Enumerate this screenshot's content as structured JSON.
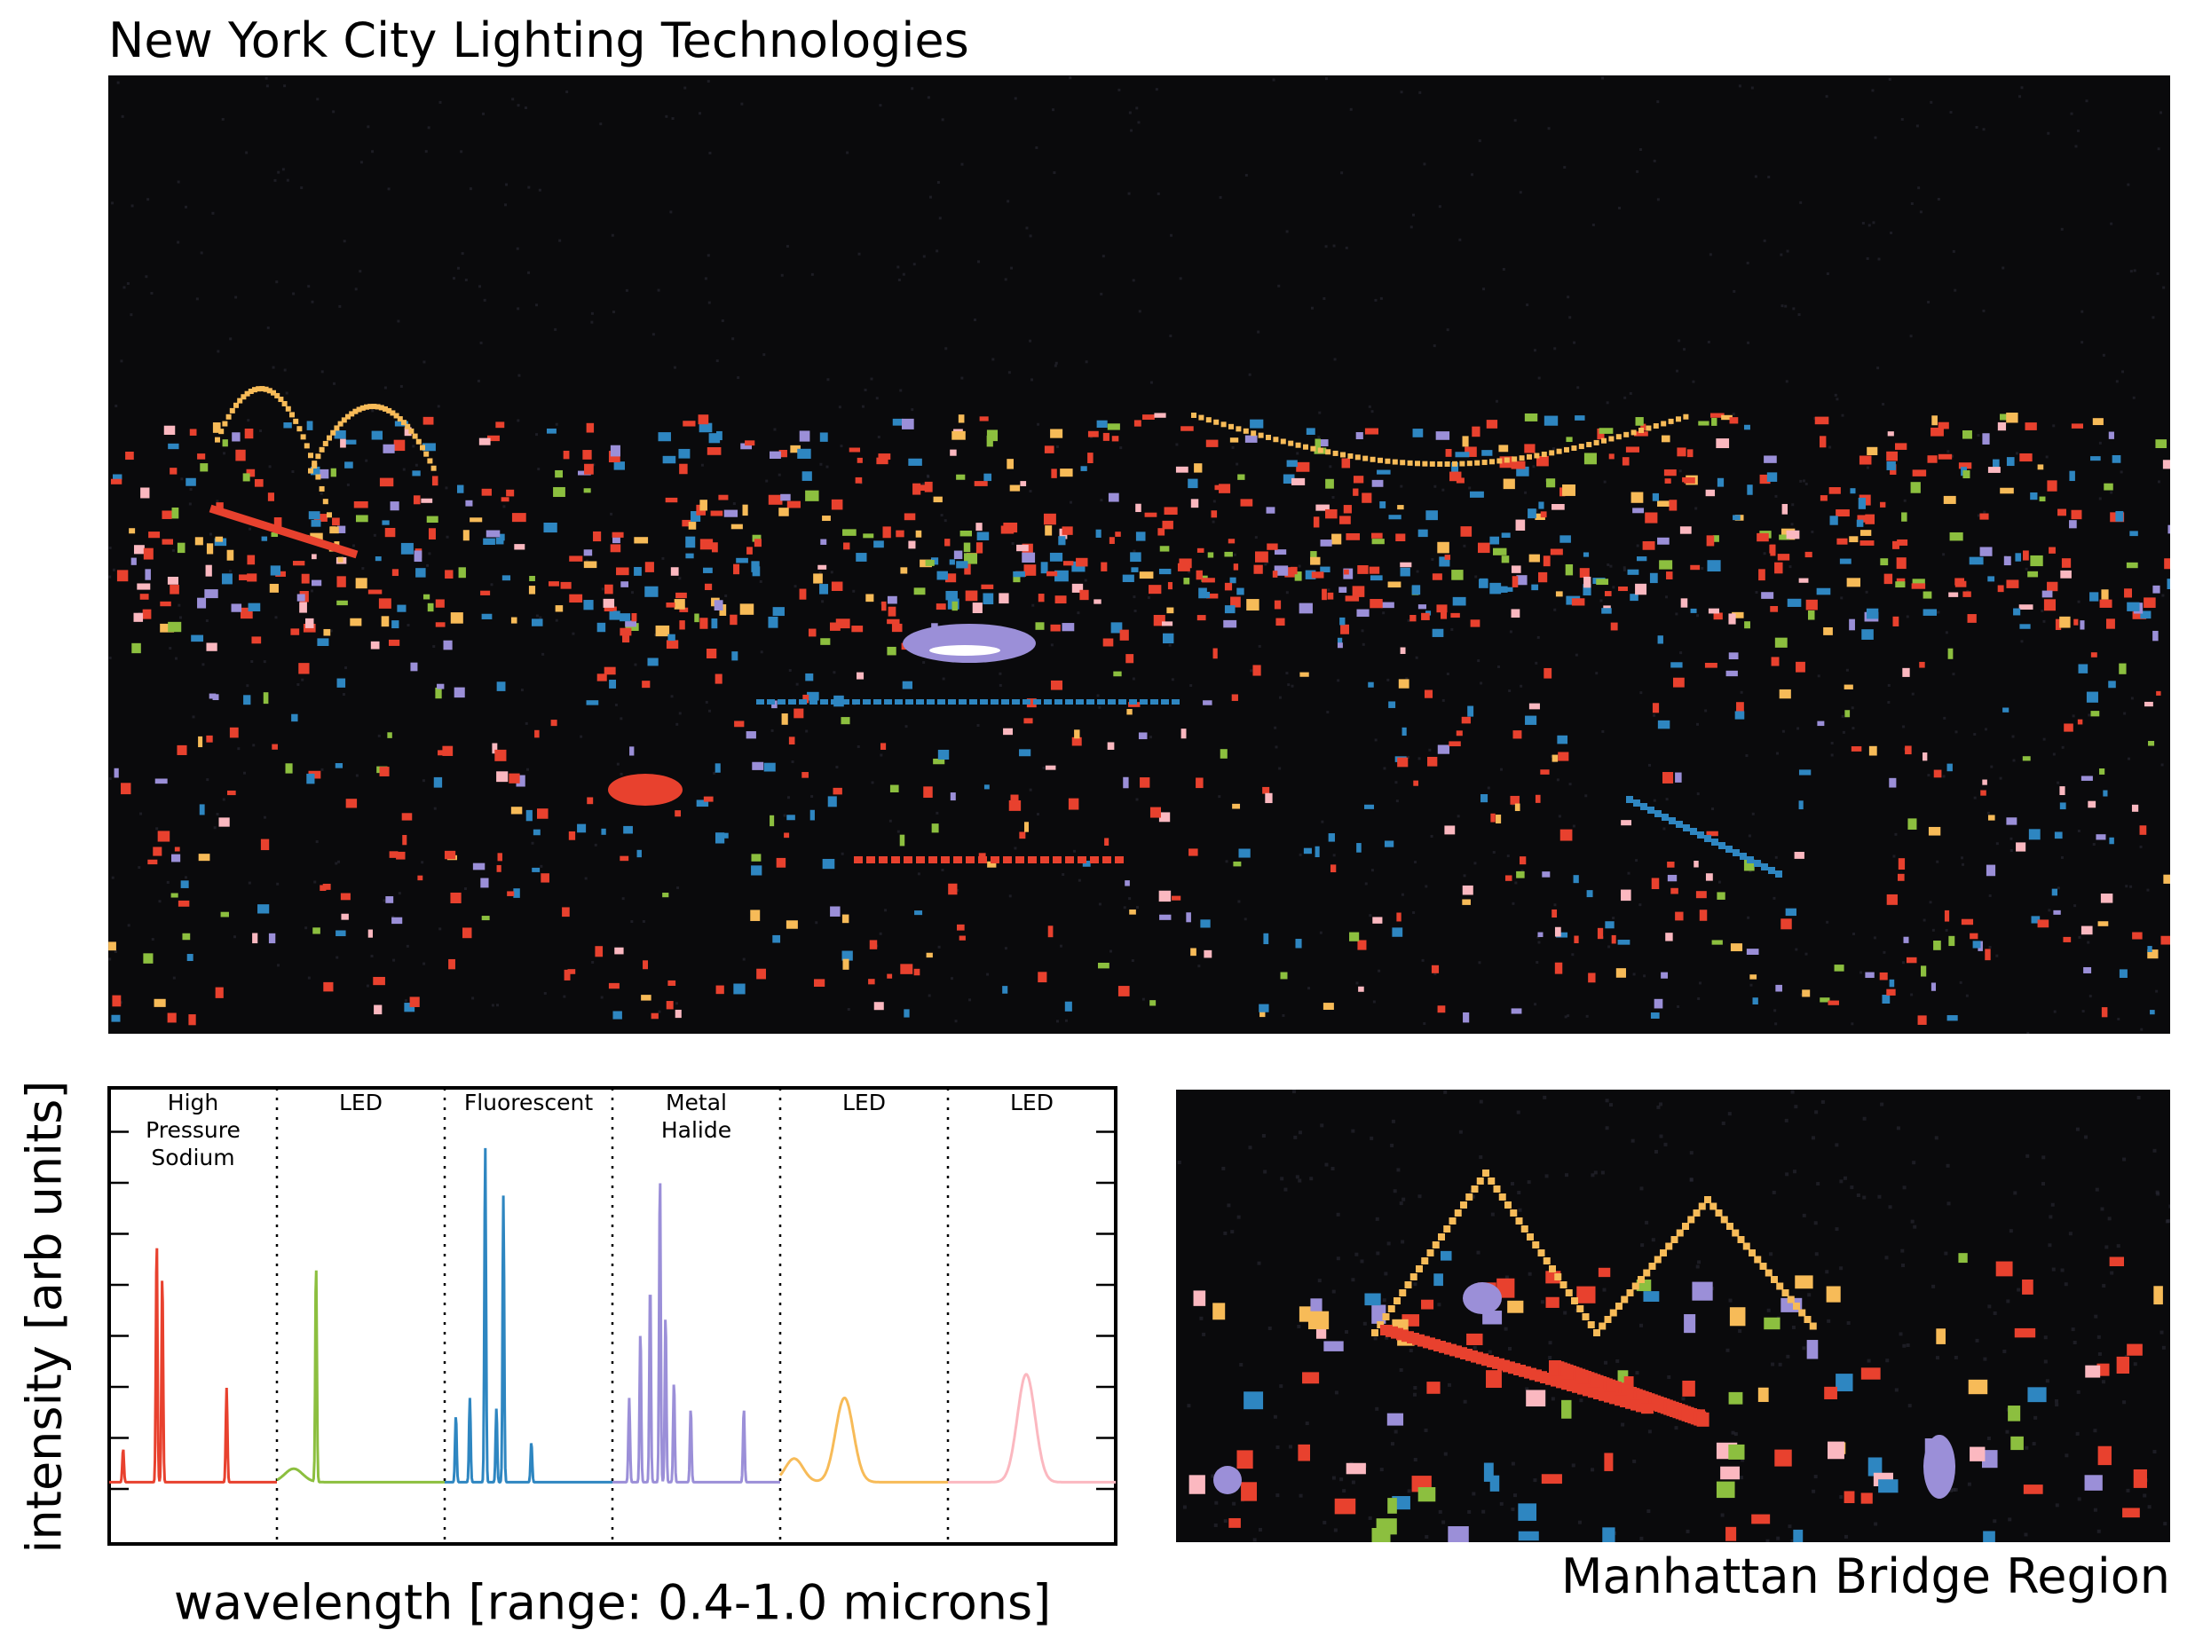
{
  "title": "New York City Lighting Technologies",
  "bridge_label": "Manhattan Bridge Region",
  "colors": {
    "hps": "#e8412e",
    "led_green": "#8cbf3f",
    "fluorescent": "#2e86c1",
    "metal_halide": "#9b8fd8",
    "led_yellow": "#f7bb58",
    "led_pink": "#fbb8c0",
    "background": "#0a0a0c"
  },
  "chart_data": {
    "type": "line",
    "xlabel": "wavelength [range: 0.4-1.0 microns]",
    "ylabel": "intensity [arb units]",
    "grid": false,
    "x_range": [
      0.4,
      1.0
    ],
    "series": [
      {
        "name": "High Pressure Sodium",
        "label_lines": [
          "High",
          "Pressure",
          "Sodium"
        ],
        "color": "#e8412e",
        "peaks": [
          [
            0.57,
            0.72
          ],
          [
            0.59,
            0.62
          ],
          [
            0.82,
            0.28
          ],
          [
            0.45,
            0.1
          ]
        ],
        "baseline": 0.02
      },
      {
        "name": "LED",
        "label_lines": [
          "LED"
        ],
        "color": "#8cbf3f",
        "peaks": [
          [
            0.54,
            0.65
          ]
        ],
        "broad": [
          [
            0.46,
            0.04
          ]
        ],
        "baseline": 0.02
      },
      {
        "name": "Fluorescent",
        "label_lines": [
          "Fluorescent"
        ],
        "color": "#2e86c1",
        "peaks": [
          [
            0.545,
            1.0
          ],
          [
            0.61,
            0.85
          ],
          [
            0.49,
            0.25
          ],
          [
            0.44,
            0.2
          ],
          [
            0.585,
            0.22
          ],
          [
            0.71,
            0.12
          ]
        ],
        "baseline": 0.02
      },
      {
        "name": "Metal Halide",
        "label_lines": [
          "Metal",
          "Halide"
        ],
        "color": "#9b8fd8",
        "peaks": [
          [
            0.57,
            0.92
          ],
          [
            0.535,
            0.6
          ],
          [
            0.59,
            0.5
          ],
          [
            0.5,
            0.45
          ],
          [
            0.46,
            0.25
          ],
          [
            0.62,
            0.3
          ],
          [
            0.68,
            0.22
          ],
          [
            0.87,
            0.22
          ]
        ],
        "baseline": 0.02
      },
      {
        "name": "LED",
        "label_lines": [
          "LED"
        ],
        "color": "#f7bb58",
        "broad": [
          [
            0.63,
            0.25
          ],
          [
            0.45,
            0.07
          ]
        ],
        "baseline": 0.02
      },
      {
        "name": "LED",
        "label_lines": [
          "LED"
        ],
        "color": "#fbb8c0",
        "broad": [
          [
            0.68,
            0.32
          ]
        ],
        "baseline": 0.02
      }
    ]
  }
}
